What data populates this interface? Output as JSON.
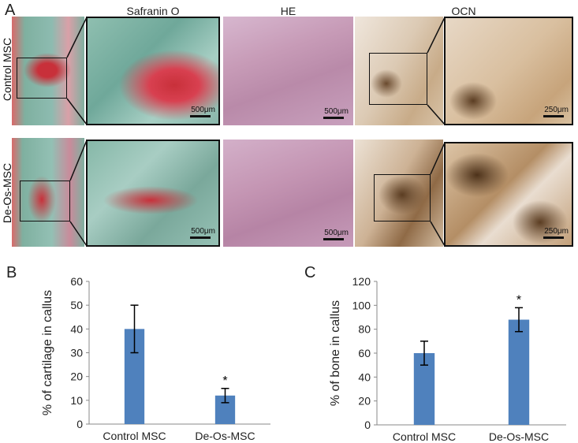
{
  "panel_a": {
    "letter": "A",
    "columns": [
      "Safranin O",
      "HE",
      "OCN"
    ],
    "rows": [
      "Control MSC",
      "De-Os-MSC"
    ],
    "scale_labels": {
      "safranin": "500μm",
      "he": "500μm",
      "ocn": "250μm"
    },
    "colors": {
      "safranin_bg": "#7fb0a0",
      "safranin_stain": "#c8303a",
      "he_bg": "#c89bb8",
      "ocn_bg": "#e3d2bf",
      "ocn_stain": "#6a4a2e"
    }
  },
  "chart_data": [
    {
      "panel": "B",
      "type": "bar",
      "categories": [
        "Control MSC",
        "De-Os-MSC"
      ],
      "values": [
        40,
        12
      ],
      "errors": [
        10,
        3
      ],
      "significance": [
        "",
        "*"
      ],
      "xlabel": "",
      "ylabel": "% of cartilage in callus",
      "ylim": [
        0,
        60
      ],
      "yticks": [
        "0",
        "10",
        "20",
        "30",
        "40",
        "50",
        "60"
      ],
      "bar_color": "#4f81bd",
      "grid": false
    },
    {
      "panel": "C",
      "type": "bar",
      "categories": [
        "Control MSC",
        "De-Os-MSC"
      ],
      "values": [
        60,
        88
      ],
      "errors": [
        10,
        10
      ],
      "significance": [
        "",
        "*"
      ],
      "xlabel": "",
      "ylabel": "% of bone in callus",
      "ylim": [
        0,
        120
      ],
      "yticks": [
        "0",
        "20",
        "40",
        "60",
        "80",
        "100",
        "120"
      ],
      "bar_color": "#4f81bd",
      "grid": false
    }
  ]
}
